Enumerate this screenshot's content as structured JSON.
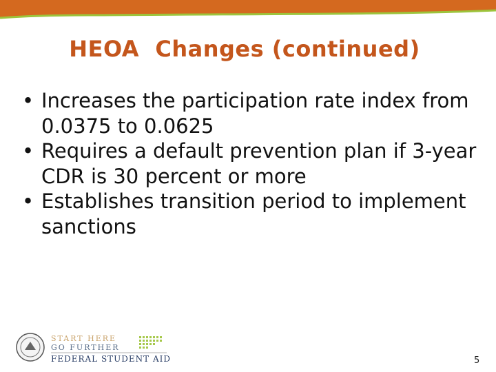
{
  "slide": {
    "title": "HEOA  Changes (continued)",
    "bullets": [
      "Increases the participation rate index from 0.0375 to 0.0625",
      "Requires a default prevention plan if 3-year CDR is 30 percent or more",
      "Establishes transition period to implement sanctions"
    ],
    "logo": {
      "line1": "START HERE",
      "line2": "GO FURTHER",
      "line3": "FEDERAL STUDENT AID"
    },
    "page_number": 5
  }
}
